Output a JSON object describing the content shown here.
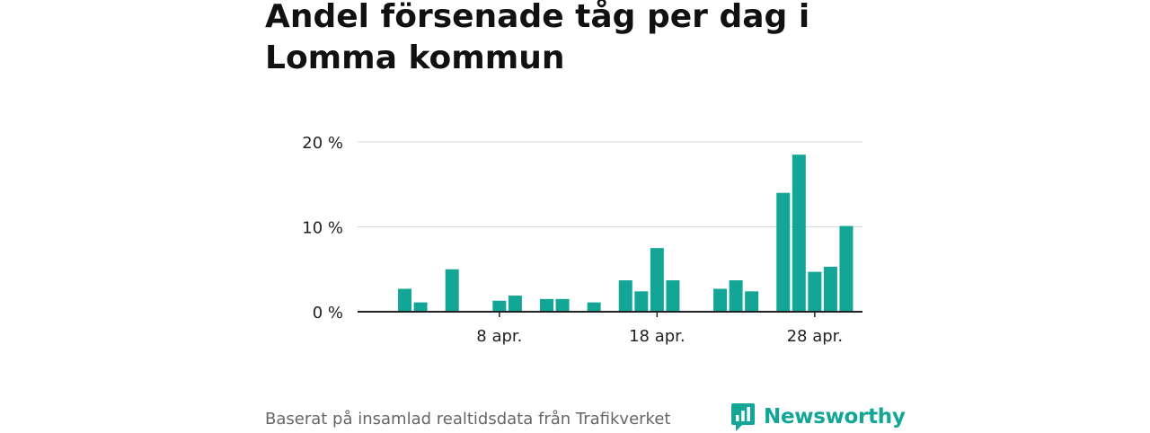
{
  "title": "Andel försenade tåg per dag i Lomma kommun",
  "source_note": "Baserat på insamlad realtidsdata från Trafikverket",
  "brand": {
    "name": "Newsworthy",
    "icon": "newsworthy-logo-icon",
    "color": "#13a696"
  },
  "chart_data": {
    "type": "bar",
    "bar_color": "#13a696",
    "unit": "%",
    "x": [
      "2022-04-01",
      "2022-04-02",
      "2022-04-03",
      "2022-04-04",
      "2022-04-05",
      "2022-04-06",
      "2022-04-07",
      "2022-04-08",
      "2022-04-09",
      "2022-04-10",
      "2022-04-11",
      "2022-04-12",
      "2022-04-13",
      "2022-04-14",
      "2022-04-15",
      "2022-04-16",
      "2022-04-17",
      "2022-04-18",
      "2022-04-19",
      "2022-04-20",
      "2022-04-21",
      "2022-04-22",
      "2022-04-23",
      "2022-04-24",
      "2022-04-25",
      "2022-04-26",
      "2022-04-27",
      "2022-04-28",
      "2022-04-29",
      "2022-04-30"
    ],
    "values": [
      0,
      2.7,
      1.1,
      0,
      5.0,
      0,
      0,
      1.3,
      1.9,
      0,
      1.5,
      1.5,
      0,
      1.1,
      0,
      3.7,
      2.4,
      7.5,
      3.7,
      0,
      0,
      2.7,
      3.7,
      2.4,
      0,
      14.0,
      18.5,
      4.7,
      5.3,
      10.1
    ],
    "ylim": [
      0,
      20
    ],
    "yticks": [
      0,
      10,
      20
    ],
    "ytick_labels": [
      "0 %",
      "10 %",
      "20 %"
    ],
    "xticks": [
      "2022-04-08",
      "2022-04-18",
      "2022-04-28"
    ],
    "xtick_labels": [
      "8 apr.",
      "18 apr.",
      "28 apr."
    ],
    "grid": true
  }
}
